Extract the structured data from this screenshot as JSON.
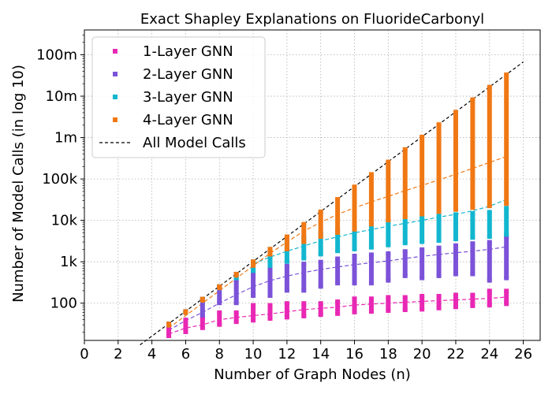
{
  "chart_data": {
    "type": "scatter",
    "title": "Exact Shapley Explanations on FluorideCarbonyl",
    "xlabel": "Number of Graph Nodes (n)",
    "ylabel": "Number of Model Calls (in log 10)",
    "xlim": [
      0,
      27
    ],
    "ylim_log10": [
      1.1,
      8.6
    ],
    "y_scale": "log10",
    "grid": true,
    "legend_position": "top-left",
    "x_ticks": [
      0,
      2,
      4,
      6,
      8,
      10,
      12,
      14,
      16,
      18,
      20,
      22,
      24,
      26
    ],
    "y_ticks": [
      {
        "value": 100,
        "label": "100"
      },
      {
        "value": 1000,
        "label": "1k"
      },
      {
        "value": 10000,
        "label": "10k"
      },
      {
        "value": 100000,
        "label": "100k"
      },
      {
        "value": 1000000,
        "label": "1m"
      },
      {
        "value": 10000000,
        "label": "10m"
      },
      {
        "value": 100000000,
        "label": "100m"
      }
    ],
    "x": [
      5,
      6,
      7,
      8,
      9,
      10,
      11,
      12,
      13,
      14,
      15,
      16,
      17,
      18,
      19,
      20,
      21,
      22,
      23,
      24,
      25
    ],
    "series": [
      {
        "name": "1-Layer GNN",
        "color": "#e828b4",
        "min": [
          16,
          20,
          25,
          30,
          35,
          38,
          42,
          45,
          48,
          52,
          55,
          60,
          62,
          65,
          68,
          70,
          75,
          80,
          85,
          88,
          95
        ],
        "max": [
          28,
          40,
          45,
          60,
          60,
          90,
          90,
          100,
          100,
          100,
          110,
          130,
          130,
          140,
          140,
          150,
          150,
          160,
          160,
          200,
          200
        ],
        "trend": [
          18,
          25,
          30,
          40,
          45,
          50,
          55,
          62,
          70,
          75,
          80,
          90,
          95,
          100,
          105,
          110,
          115,
          120,
          125,
          130,
          140
        ]
      },
      {
        "name": "2-Layer GNN",
        "color": "#7b52d8",
        "min": [
          30,
          60,
          50,
          100,
          100,
          150,
          150,
          200,
          200,
          250,
          300,
          300,
          300,
          350,
          450,
          400,
          450,
          500,
          500,
          350,
          400
        ],
        "max": [
          32,
          64,
          128,
          250,
          350,
          500,
          700,
          800,
          900,
          1000,
          1200,
          1400,
          1500,
          1600,
          1800,
          2000,
          2200,
          2500,
          2800,
          3000,
          4000
        ],
        "trend": [
          22,
          38,
          60,
          100,
          160,
          250,
          350,
          450,
          550,
          650,
          750,
          850,
          950,
          1050,
          1200,
          1350,
          1500,
          1650,
          1800,
          2000,
          2300
        ]
      },
      {
        "name": "3-Layer GNN",
        "color": "#12b6cf",
        "min": [
          30,
          60,
          120,
          250,
          400,
          600,
          800,
          1000,
          1200,
          1500,
          1800,
          2000,
          2200,
          2500,
          2800,
          3000,
          3200,
          3500,
          3800,
          4000,
          4500
        ],
        "max": [
          32,
          64,
          128,
          256,
          512,
          1024,
          2048,
          3000,
          4000,
          5000,
          6000,
          7000,
          8000,
          9000,
          10000,
          12000,
          13000,
          14000,
          15000,
          16000,
          20000
        ],
        "trend": [
          null,
          null,
          null,
          null,
          null,
          900,
          1300,
          1800,
          2400,
          3200,
          4000,
          5000,
          6000,
          7200,
          8500,
          10000,
          12000,
          14000,
          17000,
          22000,
          32000
        ]
      },
      {
        "name": "4-Layer GNN",
        "color": "#f07814",
        "min": [
          30,
          60,
          120,
          250,
          500,
          800,
          1500,
          2000,
          3000,
          4000,
          5000,
          6000,
          8000,
          10000,
          12000,
          14000,
          16000,
          18000,
          20000,
          22000,
          25000
        ],
        "max": [
          32,
          64,
          128,
          256,
          512,
          1024,
          2048,
          4096,
          8192,
          16384,
          32768,
          65536,
          131072,
          262144,
          524288,
          1048576,
          2097152,
          4194304,
          8388608,
          16777216,
          33554432
        ],
        "trend": [
          25,
          50,
          100,
          200,
          400,
          800,
          1600,
          3000,
          5500,
          9000,
          14000,
          20000,
          28000,
          38000,
          52000,
          70000,
          95000,
          130000,
          180000,
          250000,
          350000
        ]
      }
    ],
    "reference_line": {
      "name": "All Model Calls",
      "color": "#000000",
      "style": "dashed",
      "formula": "2^n",
      "x_range": [
        3.3,
        26
      ]
    }
  }
}
